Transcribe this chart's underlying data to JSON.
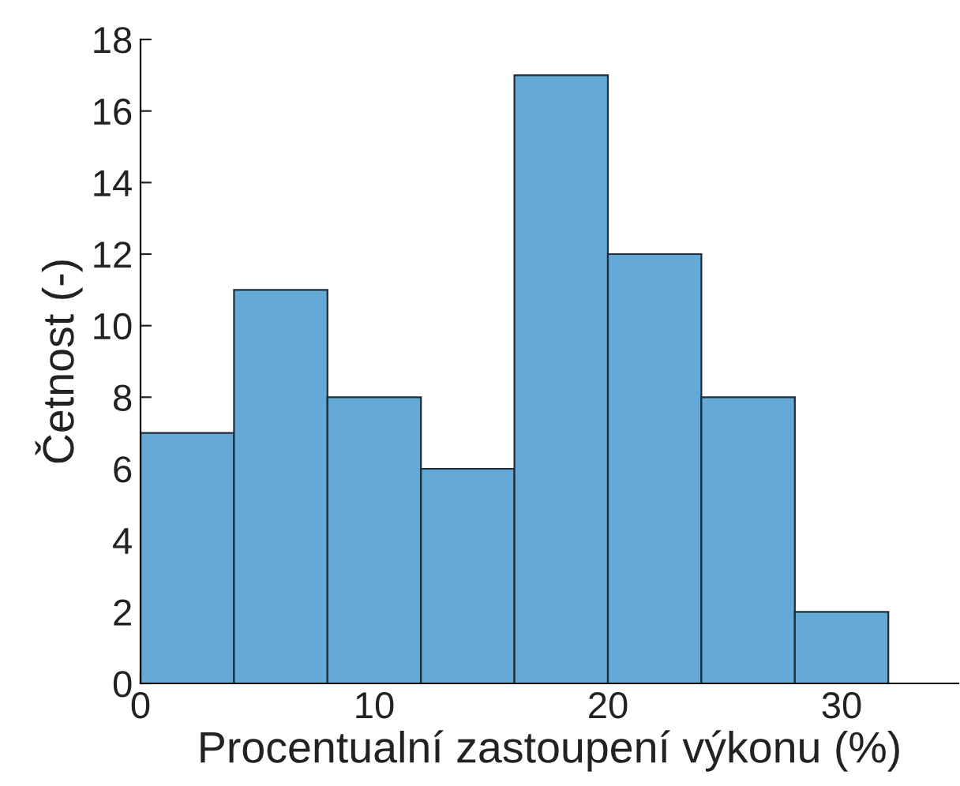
{
  "chart_data": {
    "type": "histogram",
    "xlabel": "Procentualní zastoupení výkonu (%)",
    "ylabel": "Četnost (-)",
    "bins": [
      0,
      4,
      8,
      12,
      16,
      20,
      24,
      28,
      32
    ],
    "values": [
      7,
      11,
      8,
      6,
      17,
      12,
      8,
      2
    ],
    "color": "#65a9d7",
    "xlim": [
      0,
      35
    ],
    "xticks": [
      0,
      10,
      20,
      30
    ],
    "ylim": [
      0,
      18
    ],
    "yticks": [
      0,
      2,
      4,
      6,
      8,
      10,
      12,
      14,
      16,
      18
    ],
    "grid": false
  }
}
